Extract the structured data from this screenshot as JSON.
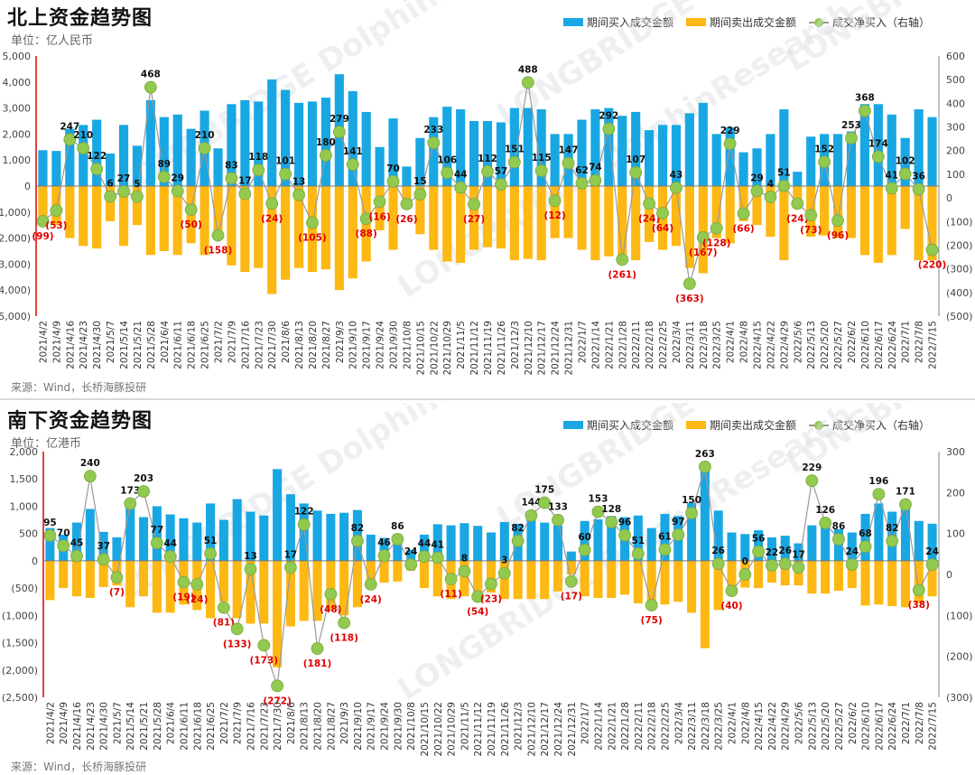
{
  "colors": {
    "buy": "#18a7e3",
    "sell": "#fdb813",
    "net_line": "#999999",
    "net_marker": "#92c94f",
    "neg_label": "#e00000",
    "axis_red": "#e00000"
  },
  "legend": {
    "buy": "期间买入成交金额",
    "sell": "期间卖出成交金额",
    "net": "成交净买入（右轴）"
  },
  "chart_data": [
    {
      "id": "north",
      "type": "bar+line",
      "title": "北上资金趋势图",
      "unit": "单位：亿人民币",
      "source": "来源：Wind，长桥海豚投研",
      "ylim": [
        -5000,
        5000
      ],
      "yticks": [
        "5,000",
        "4,000",
        "3,000",
        "2,000",
        "1,000",
        "0",
        "(1,000)",
        "(2,000)",
        "(3,000)",
        "(4,000)",
        "(5,000)"
      ],
      "y2lim": [
        -500,
        600
      ],
      "y2ticks": [
        "600",
        "500",
        "400",
        "300",
        "200",
        "100",
        "0",
        "(100)",
        "(200)",
        "(300)",
        "(400)",
        "(500)"
      ],
      "categories": [
        "2021/4/2",
        "2021/4/9",
        "2021/4/16",
        "2021/4/23",
        "2021/4/30",
        "2021/5/7",
        "2021/5/14",
        "2021/5/21",
        "2021/5/28",
        "2021/6/4",
        "2021/6/11",
        "2021/6/18",
        "2021/6/25",
        "2021/7/2",
        "2021/7/9",
        "2021/7/16",
        "2021/7/23",
        "2021/7/30",
        "2021/8/6",
        "2021/8/13",
        "2021/8/20",
        "2021/8/27",
        "2021/9/3",
        "2021/9/10",
        "2021/9/17",
        "2021/9/24",
        "2021/9/30",
        "2021/10/8",
        "2021/10/15",
        "2021/10/22",
        "2021/10/29",
        "2021/11/5",
        "2021/11/12",
        "2021/11/19",
        "2021/11/26",
        "2021/12/3",
        "2021/12/10",
        "2021/12/17",
        "2021/12/24",
        "2021/12/31",
        "2022/1/7",
        "2022/1/14",
        "2022/1/21",
        "2022/1/28",
        "2022/2/11",
        "2022/2/18",
        "2022/2/25",
        "2022/3/4",
        "2022/3/11",
        "2022/3/18",
        "2022/3/25",
        "2022/4/1",
        "2022/4/8",
        "2022/4/15",
        "2022/4/22",
        "2022/4/29",
        "2022/5/6",
        "2022/5/13",
        "2022/5/20",
        "2022/5/27",
        "2022/6/2",
        "2022/6/10",
        "2022/6/17",
        "2022/6/24",
        "2022/7/1",
        "2022/7/8",
        "2022/7/15"
      ],
      "series": [
        {
          "name": "期间买入成交金额",
          "values": [
            1380,
            1350,
            2200,
            2350,
            2550,
            1250,
            2350,
            1550,
            3300,
            2650,
            2750,
            2200,
            2900,
            1450,
            3150,
            3300,
            3250,
            4100,
            3700,
            3200,
            3250,
            3400,
            4300,
            3650,
            2850,
            1500,
            2600,
            750,
            1850,
            2650,
            3050,
            2950,
            2500,
            2500,
            2450,
            3000,
            3000,
            2950,
            2000,
            2000,
            2550,
            2950,
            3000,
            2700,
            2850,
            2150,
            2350,
            2350,
            2800,
            3200,
            2000,
            2250,
            1300,
            1450,
            2000,
            2950,
            550,
            1900,
            2000,
            2000,
            2100,
            3150,
            3150,
            2750,
            1850,
            2950,
            2650
          ]
        },
        {
          "name": "期间卖出成交金额",
          "values": [
            -1200,
            -1500,
            -2000,
            -2300,
            -2400,
            -1350,
            -2300,
            -1500,
            -2650,
            -2500,
            -2650,
            -2200,
            -2650,
            -1800,
            -3050,
            -3300,
            -3150,
            -4150,
            -3600,
            -3150,
            -3300,
            -3200,
            -4000,
            -3550,
            -2900,
            -1700,
            -2450,
            -850,
            -1850,
            -2450,
            -2900,
            -2950,
            -2450,
            -2350,
            -2400,
            -2850,
            -2800,
            -2850,
            -2000,
            -2000,
            -2450,
            -2850,
            -2700,
            -2950,
            -2850,
            -2150,
            -2450,
            -2300,
            -3150,
            -3350,
            -2000,
            -2200,
            -1350,
            -1500,
            -1950,
            -2850,
            -550,
            -1950,
            -1900,
            -2000,
            -2000,
            -2650,
            -2950,
            -2650,
            -1650,
            -2850,
            -2850
          ]
        },
        {
          "name": "成交净买入（右轴）",
          "values": [
            -99,
            -53,
            247,
            210,
            122,
            6,
            27,
            5,
            468,
            89,
            29,
            -50,
            210,
            -158,
            83,
            17,
            118,
            -24,
            101,
            13,
            -105,
            180,
            279,
            141,
            -88,
            -16,
            70,
            -26,
            15,
            233,
            106,
            44,
            -27,
            112,
            57,
            151,
            488,
            115,
            -12,
            147,
            62,
            74,
            292,
            -261,
            107,
            -24,
            -64,
            43,
            -363,
            -167,
            -128,
            229,
            -66,
            29,
            4,
            51,
            -24,
            -73,
            152,
            -96,
            253,
            368,
            174,
            41,
            102,
            36,
            -220
          ]
        }
      ]
    },
    {
      "id": "south",
      "type": "bar+line",
      "title": "南下资金趋势图",
      "unit": "单位：亿港币",
      "source": "来源：Wind，长桥海豚投研",
      "ylim": [
        -2500,
        2000
      ],
      "yticks": [
        "2,000",
        "1,500",
        "1,000",
        "500",
        "0",
        "(500)",
        "(1,000)",
        "(1,500)",
        "(2,000)",
        "(2,500)"
      ],
      "y2lim": [
        -300,
        300
      ],
      "y2ticks": [
        "300",
        "200",
        "100",
        "0",
        "(100)",
        "(200)",
        "(300)"
      ],
      "categories": [
        "2021/4/2",
        "2021/4/9",
        "2021/4/16",
        "2021/4/23",
        "2021/4/30",
        "2021/5/7",
        "2021/5/14",
        "2021/5/21",
        "2021/5/28",
        "2021/6/4",
        "2021/6/11",
        "2021/6/18",
        "2021/6/25",
        "2021/7/2",
        "2021/7/9",
        "2021/7/16",
        "2021/7/23",
        "2021/7/30",
        "2021/8/6",
        "2021/8/13",
        "2021/8/20",
        "2021/8/27",
        "2021/9/3",
        "2021/9/10",
        "2021/9/17",
        "2021/9/24",
        "2021/9/30",
        "2021/10/8",
        "2021/10/15",
        "2021/10/22",
        "2021/10/29",
        "2021/11/5",
        "2021/11/12",
        "2021/11/19",
        "2021/11/26",
        "2021/12/3",
        "2021/12/10",
        "2021/12/17",
        "2021/12/24",
        "2021/12/31",
        "2022/1/7",
        "2022/1/14",
        "2022/1/21",
        "2022/1/28",
        "2022/2/11",
        "2022/2/18",
        "2022/2/25",
        "2022/3/4",
        "2022/3/11",
        "2022/3/18",
        "2022/3/25",
        "2022/4/1",
        "2022/4/8",
        "2022/4/15",
        "2022/4/22",
        "2022/4/29",
        "2022/5/6",
        "2022/5/13",
        "2022/5/20",
        "2022/5/27",
        "2022/6/2",
        "2022/6/10",
        "2022/6/17",
        "2022/6/24",
        "2022/7/1",
        "2022/7/8",
        "2022/7/15"
      ],
      "series": [
        {
          "name": "期间买入成交金额",
          "values": [
            600,
            480,
            700,
            950,
            530,
            430,
            1050,
            800,
            1000,
            850,
            780,
            700,
            1050,
            750,
            1130,
            900,
            830,
            1680,
            1220,
            1050,
            920,
            860,
            880,
            930,
            480,
            420,
            490,
            200,
            480,
            670,
            650,
            690,
            640,
            520,
            710,
            680,
            790,
            700,
            650,
            170,
            730,
            760,
            820,
            800,
            830,
            600,
            860,
            820,
            1060,
            1750,
            920,
            520,
            490,
            560,
            430,
            460,
            320,
            650,
            650,
            580,
            520,
            860,
            1050,
            900,
            950,
            730,
            680
          ]
        },
        {
          "name": "期间卖出成交金额",
          "values": [
            -720,
            -500,
            -650,
            -680,
            -480,
            -450,
            -850,
            -650,
            -950,
            -950,
            -800,
            -900,
            -1050,
            -750,
            -1050,
            -1150,
            -1150,
            -1950,
            -1200,
            -1100,
            -1100,
            -900,
            -1000,
            -850,
            -500,
            -400,
            -380,
            -180,
            -500,
            -650,
            -700,
            -650,
            -700,
            -580,
            -700,
            -700,
            -700,
            -700,
            -560,
            -250,
            -650,
            -680,
            -680,
            -620,
            -780,
            -750,
            -800,
            -750,
            -950,
            -1600,
            -900,
            -500,
            -490,
            -500,
            -400,
            -450,
            -450,
            -600,
            -600,
            -550,
            -500,
            -820,
            -800,
            -830,
            -850,
            -770,
            -650
          ]
        },
        {
          "name": "成交净买入（右轴）",
          "values": [
            95,
            70,
            45,
            240,
            37,
            -7,
            173,
            203,
            77,
            44,
            -19,
            -24,
            51,
            -81,
            -133,
            13,
            -173,
            -272,
            17,
            122,
            -181,
            -48,
            -118,
            82,
            -24,
            46,
            86,
            24,
            44,
            41,
            -11,
            8,
            -54,
            -23,
            3,
            82,
            144,
            175,
            133,
            -17,
            60,
            153,
            128,
            96,
            51,
            -75,
            61,
            97,
            150,
            263,
            26,
            -40,
            0,
            56,
            22,
            26,
            17,
            229,
            126,
            86,
            24,
            68,
            196,
            82,
            171,
            -38,
            24
          ]
        }
      ]
    }
  ],
  "watermark": "LONGBRIDGE DolphinResearch"
}
